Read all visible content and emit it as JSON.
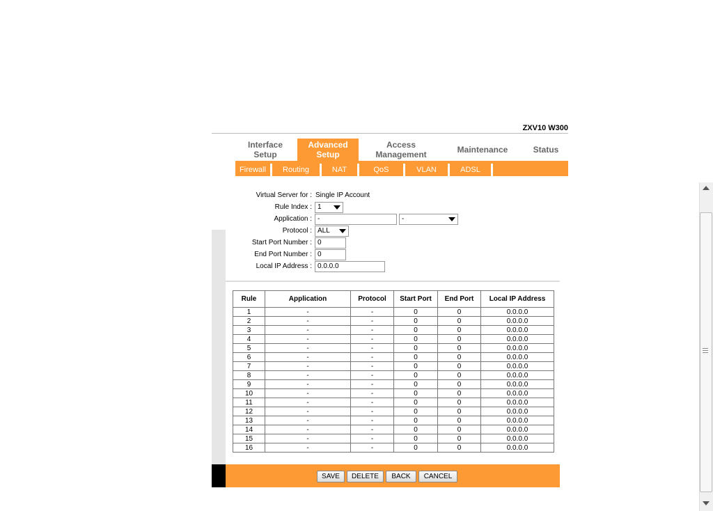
{
  "model": "ZXV10 W300",
  "tabs": [
    {
      "label": "Interface Setup"
    },
    {
      "label": "Advanced Setup",
      "active": true
    },
    {
      "label": "Access Management"
    },
    {
      "label": "Maintenance"
    },
    {
      "label": "Status"
    }
  ],
  "subtabs": [
    "Firewall",
    "Routing",
    "NAT",
    "QoS",
    "VLAN",
    "ADSL"
  ],
  "form": {
    "virtual_server_label": "Virtual Server for :",
    "virtual_server_value": "Single IP Account",
    "rule_index_label": "Rule Index :",
    "rule_index_value": "1",
    "application_label": "Application :",
    "application_value": "-",
    "application_select": "-",
    "protocol_label": "Protocol :",
    "protocol_value": "ALL",
    "start_port_label": "Start Port Number :",
    "start_port_value": "0",
    "end_port_label": "End Port Number :",
    "end_port_value": "0",
    "local_ip_label": "Local IP Address :",
    "local_ip_value": "0.0.0.0"
  },
  "table": {
    "headers": [
      "Rule",
      "Application",
      "Protocol",
      "Start Port",
      "End Port",
      "Local IP Address"
    ],
    "rows": [
      [
        "1",
        "-",
        "-",
        "0",
        "0",
        "0.0.0.0"
      ],
      [
        "2",
        "-",
        "-",
        "0",
        "0",
        "0.0.0.0"
      ],
      [
        "3",
        "-",
        "-",
        "0",
        "0",
        "0.0.0.0"
      ],
      [
        "4",
        "-",
        "-",
        "0",
        "0",
        "0.0.0.0"
      ],
      [
        "5",
        "-",
        "-",
        "0",
        "0",
        "0.0.0.0"
      ],
      [
        "6",
        "-",
        "-",
        "0",
        "0",
        "0.0.0.0"
      ],
      [
        "7",
        "-",
        "-",
        "0",
        "0",
        "0.0.0.0"
      ],
      [
        "8",
        "-",
        "-",
        "0",
        "0",
        "0.0.0.0"
      ],
      [
        "9",
        "-",
        "-",
        "0",
        "0",
        "0.0.0.0"
      ],
      [
        "10",
        "-",
        "-",
        "0",
        "0",
        "0.0.0.0"
      ],
      [
        "11",
        "-",
        "-",
        "0",
        "0",
        "0.0.0.0"
      ],
      [
        "12",
        "-",
        "-",
        "0",
        "0",
        "0.0.0.0"
      ],
      [
        "13",
        "-",
        "-",
        "0",
        "0",
        "0.0.0.0"
      ],
      [
        "14",
        "-",
        "-",
        "0",
        "0",
        "0.0.0.0"
      ],
      [
        "15",
        "-",
        "-",
        "0",
        "0",
        "0.0.0.0"
      ],
      [
        "16",
        "-",
        "-",
        "0",
        "0",
        "0.0.0.0"
      ]
    ]
  },
  "buttons": {
    "save": "SAVE",
    "delete": "DELETE",
    "back": "BACK",
    "cancel": "CANCEL"
  },
  "colors": {
    "accent": "#fd9a33"
  }
}
